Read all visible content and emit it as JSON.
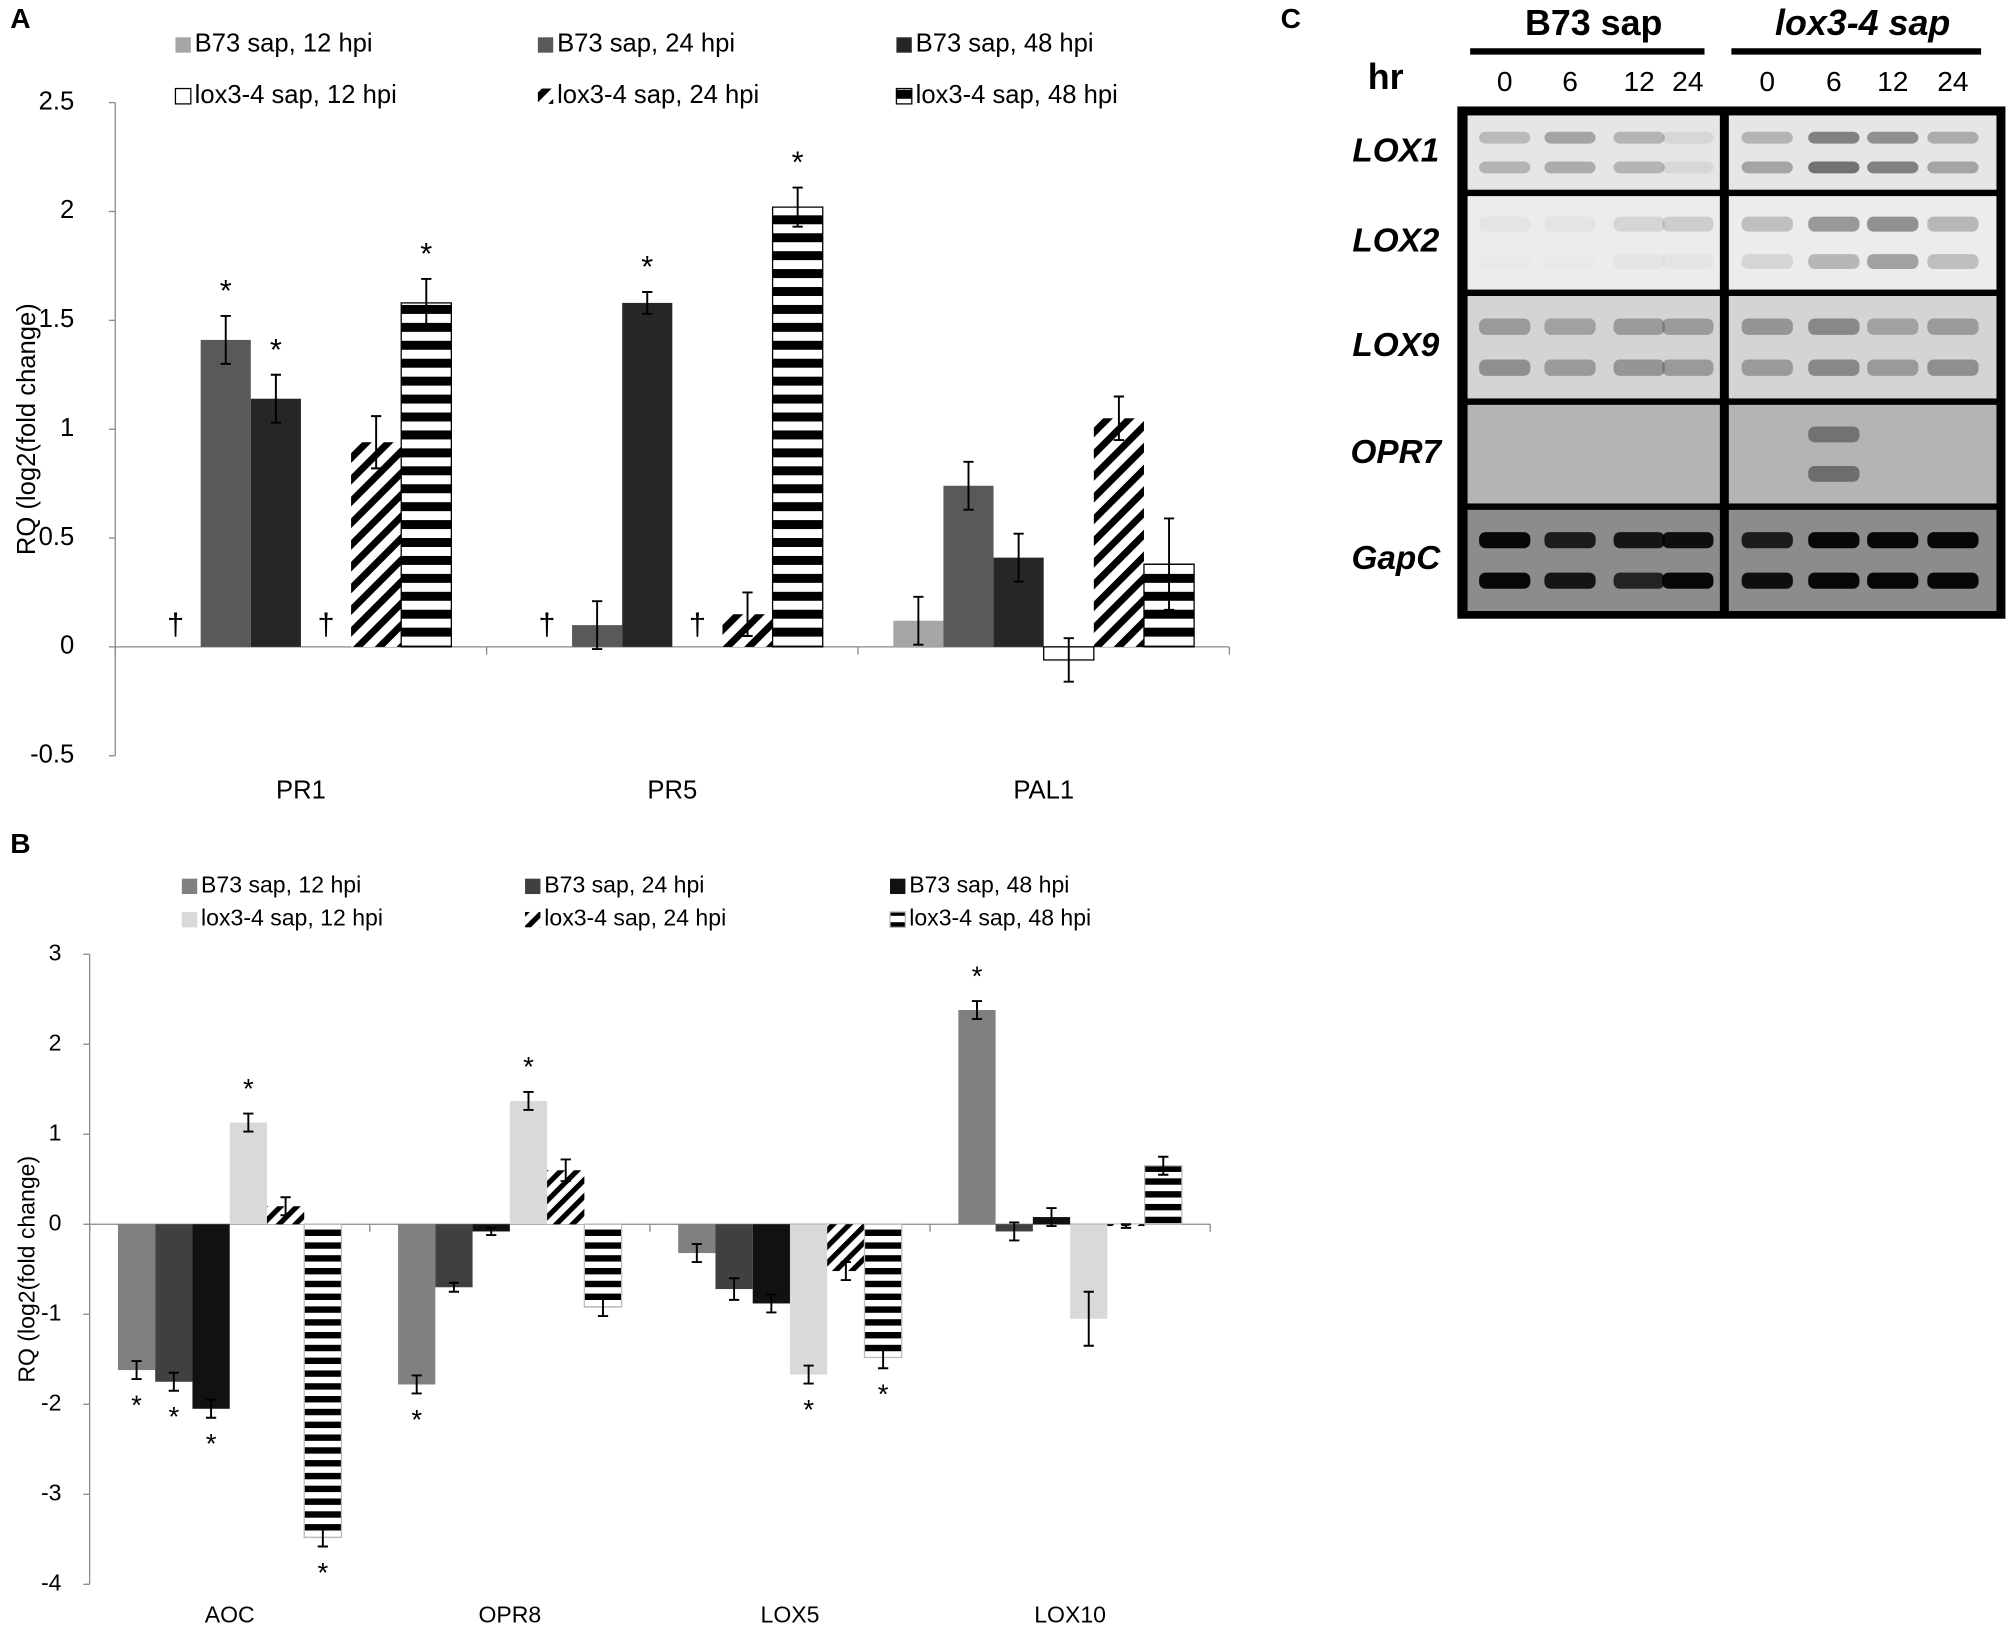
{
  "chart_data": [
    {
      "type": "bar",
      "panel_label": "A",
      "ylabel": "RQ (log2(fold change)",
      "categories": [
        "PR1",
        "PR5",
        "PAL1"
      ],
      "ylim": [
        -0.5,
        2.5
      ],
      "yticks": [
        -0.5,
        0,
        0.5,
        1,
        1.5,
        2,
        2.5
      ],
      "series": [
        {
          "name": "B73 sap, 12 hpi",
          "color": "#a6a6a6",
          "values": [
            null,
            null,
            0.12
          ],
          "errors": [
            null,
            null,
            0.11
          ],
          "markers": [
            "†",
            "†",
            null
          ]
        },
        {
          "name": "B73 sap, 24 hpi",
          "color": "#595959",
          "values": [
            1.41,
            0.1,
            0.74
          ],
          "errors": [
            0.11,
            0.11,
            0.11
          ],
          "markers": [
            "*",
            null,
            null
          ]
        },
        {
          "name": "B73 sap, 48 hpi",
          "color": "#262626",
          "values": [
            1.14,
            1.58,
            0.41
          ],
          "errors": [
            0.11,
            0.05,
            0.11
          ],
          "markers": [
            "*",
            "*",
            null
          ]
        },
        {
          "name": "lox3-4 sap, 12 hpi",
          "color": "#ffffff",
          "edgecolor": "#000000",
          "values": [
            null,
            null,
            -0.06
          ],
          "errors": [
            null,
            null,
            0.1
          ],
          "markers": [
            "†",
            "†",
            null
          ]
        },
        {
          "name": "lox3-4 sap, 24 hpi",
          "color": "#000000",
          "pattern": "diagonal",
          "values": [
            0.94,
            0.15,
            1.05
          ],
          "errors": [
            0.12,
            0.1,
            0.1
          ],
          "markers": [
            null,
            null,
            null
          ]
        },
        {
          "name": "lox3-4 sap, 48 hpi",
          "color": "#000000",
          "pattern": "horizontal",
          "edgecolor": "#000000",
          "values": [
            1.58,
            2.02,
            0.38
          ],
          "errors": [
            0.11,
            0.09,
            0.21
          ],
          "markers": [
            "*",
            "*",
            null
          ]
        }
      ]
    },
    {
      "type": "bar",
      "panel_label": "B",
      "ylabel": "RQ (log2(fold change)",
      "categories": [
        "AOC",
        "OPR8",
        "LOX5",
        "LOX10"
      ],
      "ylim": [
        -4,
        3
      ],
      "yticks": [
        -4,
        -3,
        -2,
        -1,
        0,
        1,
        2,
        3
      ],
      "series": [
        {
          "name": "B73 sap, 12 hpi",
          "color": "#808080",
          "values": [
            -1.62,
            -1.78,
            -0.32,
            2.38
          ],
          "errors": [
            0.1,
            0.1,
            0.1,
            0.1
          ],
          "markers": [
            "*",
            "*",
            null,
            "*"
          ]
        },
        {
          "name": "B73 sap, 24 hpi",
          "color": "#404040",
          "values": [
            -1.75,
            -0.7,
            -0.72,
            -0.08
          ],
          "errors": [
            0.1,
            0.05,
            0.12,
            0.1
          ],
          "markers": [
            "*",
            null,
            null,
            null
          ]
        },
        {
          "name": "B73 sap, 48 hpi",
          "color": "#111111",
          "values": [
            -2.05,
            -0.08,
            -0.88,
            0.08
          ],
          "errors": [
            0.1,
            0.04,
            0.1,
            0.1
          ],
          "markers": [
            "*",
            null,
            null,
            null
          ]
        },
        {
          "name": "lox3-4 sap, 12 hpi",
          "color": "#d9d9d9",
          "values": [
            1.13,
            1.37,
            -1.67,
            -1.05
          ],
          "errors": [
            0.1,
            0.1,
            0.1,
            0.3
          ],
          "markers": [
            "*",
            "*",
            "*",
            null
          ]
        },
        {
          "name": "lox3-4 sap, 24 hpi",
          "color": "#000000",
          "pattern": "diagonal",
          "values": [
            0.2,
            0.6,
            -0.52,
            -0.02
          ],
          "errors": [
            0.1,
            0.12,
            0.1,
            0.02
          ],
          "markers": [
            null,
            null,
            null,
            null
          ]
        },
        {
          "name": "lox3-4 sap, 48 hpi",
          "color": "#000000",
          "pattern": "horizontal",
          "edgecolor": "#bbbbbb",
          "values": [
            -3.48,
            -0.92,
            -1.48,
            0.65
          ],
          "errors": [
            0.1,
            0.1,
            0.12,
            0.1
          ],
          "markers": [
            "*",
            null,
            "*",
            null
          ]
        }
      ]
    }
  ],
  "gel": {
    "panel_label": "C",
    "groups": [
      "B73 sap",
      "lox3-4 sap"
    ],
    "time_label": "hr",
    "times": [
      "0",
      "6",
      "12",
      "24"
    ],
    "genes": [
      "LOX1",
      "LOX2",
      "LOX9",
      "OPR7",
      "GapC"
    ]
  }
}
